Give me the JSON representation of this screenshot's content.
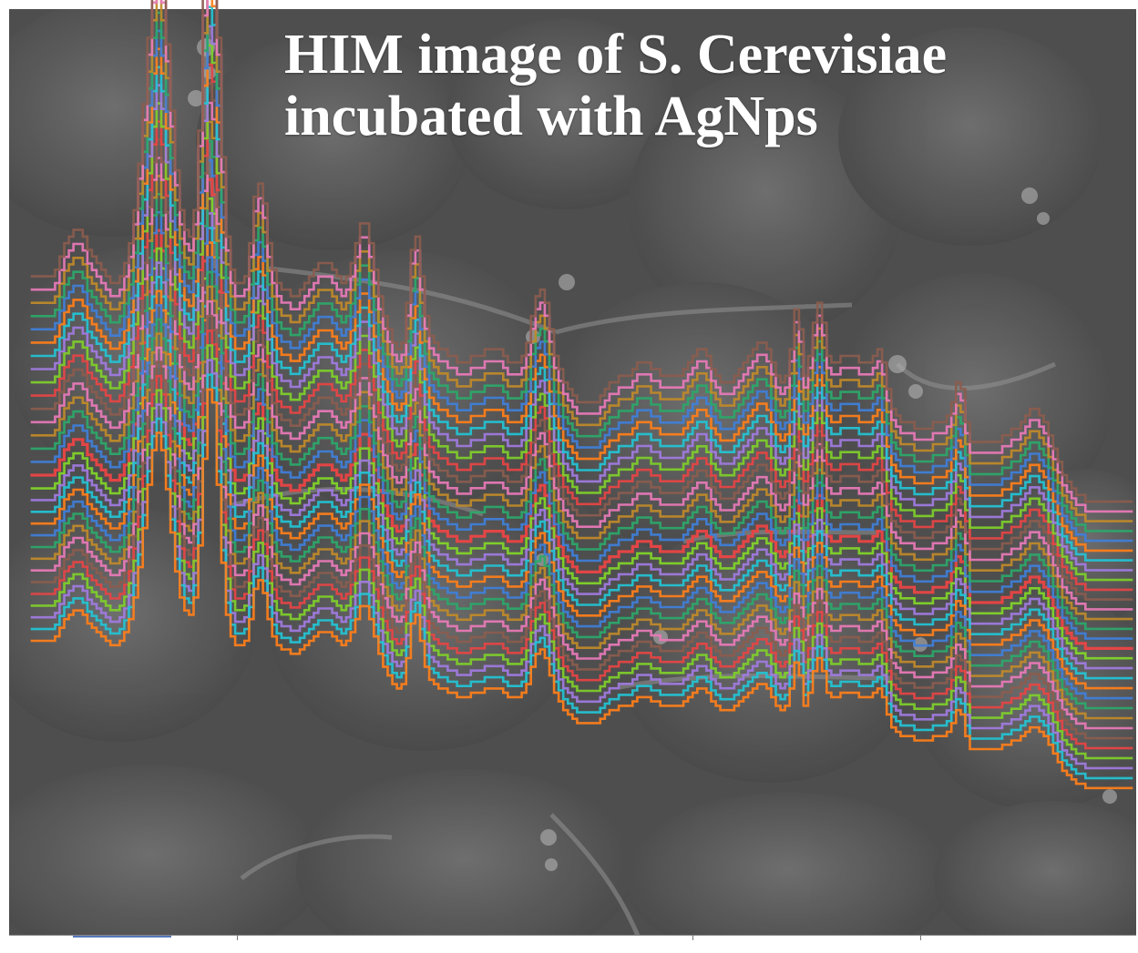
{
  "title": {
    "line1": "HIM image of S. Cerevisiae",
    "line2": "incubated with AgNps"
  },
  "colors": {
    "background_image": "#4a4a4a",
    "title_text": "#ffffff",
    "series": [
      "#e64545",
      "#7fcf2b",
      "#a07be0",
      "#24c4d4",
      "#ff7f1a",
      "#3f7fd8",
      "#2ca86a",
      "#c08a2a",
      "#e87ab8",
      "#8b5c4f"
    ]
  },
  "chart_data": {
    "type": "line",
    "series_count": 30,
    "x": [
      0,
      1,
      2,
      3,
      4,
      5,
      6,
      7,
      8,
      9,
      10,
      11,
      12,
      13,
      14,
      15,
      16,
      17,
      18,
      19,
      20,
      21,
      22,
      23,
      24,
      25,
      26,
      27,
      28,
      29,
      30,
      31,
      32,
      33,
      34,
      35,
      36,
      37,
      38,
      39,
      40,
      41,
      42,
      43,
      44,
      45,
      46,
      47,
      48,
      49,
      50,
      51,
      52,
      53,
      54,
      55,
      56,
      57,
      58,
      59,
      60,
      61,
      62,
      63,
      64,
      65,
      66,
      67,
      68,
      69,
      70,
      71,
      72,
      73,
      74,
      75,
      76,
      77,
      78,
      79,
      80,
      81,
      82,
      83,
      84,
      85,
      86,
      87,
      88,
      89,
      90,
      91,
      92,
      93,
      94,
      95,
      96,
      97,
      98,
      99,
      100,
      101,
      102,
      103,
      104,
      105,
      106,
      107,
      108,
      109,
      110,
      111,
      112,
      113,
      114,
      115,
      116,
      117,
      118,
      119,
      120,
      121,
      122,
      123,
      124,
      125,
      126,
      127,
      128,
      129,
      130,
      131,
      132,
      133,
      134,
      135,
      136,
      137,
      138,
      139,
      140,
      141,
      142,
      143,
      144,
      145,
      146,
      147,
      148,
      149,
      150,
      151,
      152,
      153,
      154,
      155,
      156,
      157,
      158,
      159,
      160,
      161,
      162,
      163,
      164,
      165,
      166,
      167,
      168,
      169,
      170,
      171,
      172,
      173,
      174,
      175,
      176,
      177,
      178,
      179,
      180,
      181,
      182,
      183,
      184,
      185,
      186,
      187,
      188,
      189,
      190,
      191,
      192,
      193,
      194,
      195,
      196,
      197,
      198,
      199,
      200,
      201,
      202,
      203,
      204,
      205,
      206,
      207,
      208,
      209,
      210,
      211,
      212,
      213,
      214,
      215,
      216,
      217,
      218,
      219,
      220,
      221,
      222,
      223,
      224,
      225,
      226,
      227,
      228,
      229,
      230,
      231,
      232,
      233,
      234,
      235,
      236,
      237,
      238,
      239
    ],
    "mean_profile": [
      0.3,
      0.3,
      0.3,
      0.3,
      0.3,
      0.31,
      0.33,
      0.35,
      0.36,
      0.37,
      0.37,
      0.36,
      0.34,
      0.33,
      0.32,
      0.31,
      0.3,
      0.29,
      0.29,
      0.3,
      0.32,
      0.35,
      0.4,
      0.47,
      0.56,
      0.66,
      0.74,
      0.78,
      0.74,
      0.65,
      0.55,
      0.46,
      0.4,
      0.37,
      0.36,
      0.4,
      0.52,
      0.72,
      0.88,
      0.85,
      0.66,
      0.48,
      0.36,
      0.31,
      0.29,
      0.29,
      0.3,
      0.35,
      0.42,
      0.44,
      0.41,
      0.35,
      0.31,
      0.29,
      0.28,
      0.28,
      0.27,
      0.27,
      0.28,
      0.29,
      0.3,
      0.31,
      0.32,
      0.32,
      0.32,
      0.31,
      0.3,
      0.29,
      0.3,
      0.32,
      0.35,
      0.38,
      0.38,
      0.35,
      0.31,
      0.27,
      0.24,
      0.22,
      0.2,
      0.19,
      0.2,
      0.26,
      0.34,
      0.36,
      0.3,
      0.24,
      0.21,
      0.2,
      0.19,
      0.19,
      0.18,
      0.18,
      0.17,
      0.17,
      0.17,
      0.18,
      0.18,
      0.18,
      0.19,
      0.19,
      0.19,
      0.19,
      0.18,
      0.17,
      0.17,
      0.17,
      0.18,
      0.2,
      0.24,
      0.27,
      0.28,
      0.26,
      0.22,
      0.18,
      0.16,
      0.14,
      0.13,
      0.12,
      0.11,
      0.11,
      0.11,
      0.11,
      0.11,
      0.12,
      0.13,
      0.14,
      0.14,
      0.15,
      0.15,
      0.15,
      0.16,
      0.17,
      0.17,
      0.17,
      0.16,
      0.16,
      0.15,
      0.15,
      0.15,
      0.15,
      0.15,
      0.16,
      0.17,
      0.18,
      0.19,
      0.19,
      0.18,
      0.16,
      0.15,
      0.14,
      0.14,
      0.14,
      0.15,
      0.16,
      0.17,
      0.18,
      0.19,
      0.2,
      0.2,
      0.19,
      0.17,
      0.15,
      0.14,
      0.15,
      0.19,
      0.25,
      0.22,
      0.15,
      0.18,
      0.23,
      0.26,
      0.23,
      0.18,
      0.17,
      0.17,
      0.18,
      0.18,
      0.18,
      0.18,
      0.17,
      0.17,
      0.17,
      0.18,
      0.19,
      0.17,
      0.13,
      0.1,
      0.09,
      0.08,
      0.08,
      0.08,
      0.07,
      0.07,
      0.07,
      0.07,
      0.08,
      0.08,
      0.08,
      0.09,
      0.11,
      0.14,
      0.13,
      0.08,
      0.05,
      0.05,
      0.05,
      0.05,
      0.05,
      0.05,
      0.05,
      0.06,
      0.06,
      0.07,
      0.07,
      0.08,
      0.09,
      0.1,
      0.1,
      0.09,
      0.08,
      0.06,
      0.04,
      0.02,
      0.0,
      -0.01,
      -0.02,
      -0.03,
      -0.03,
      -0.04,
      -0.04,
      -0.04,
      -0.04,
      -0.04,
      -0.04,
      -0.04,
      -0.04,
      -0.04,
      -0.04,
      -0.04
    ],
    "offsets": [
      0.0,
      -0.02,
      -0.04,
      -0.06,
      -0.08,
      -0.1,
      -0.12,
      -0.14,
      -0.16,
      -0.18,
      -0.2,
      -0.22,
      -0.24,
      -0.26,
      -0.28,
      0.02,
      0.04,
      0.06,
      0.08,
      0.1,
      0.12,
      0.14,
      0.16,
      0.18,
      0.2,
      0.22,
      0.24,
      0.26,
      0.28,
      0.3
    ],
    "scales": [
      1.0,
      0.98,
      0.97,
      0.96,
      0.95,
      0.94,
      0.93,
      0.92,
      0.91,
      0.9,
      0.89,
      0.88,
      0.87,
      0.86,
      0.85,
      1.02,
      1.04,
      1.06,
      1.08,
      1.1,
      1.12,
      1.14,
      1.16,
      1.18,
      1.2,
      1.22,
      1.24,
      1.26,
      1.28,
      1.3
    ],
    "title": "",
    "xlabel": "",
    "ylabel": "",
    "grid": false,
    "legend": "none"
  }
}
